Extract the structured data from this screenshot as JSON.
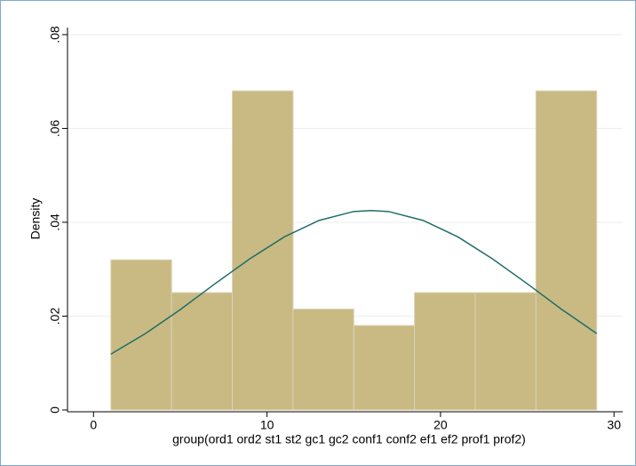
{
  "chart_data": {
    "type": "histogram",
    "xlabel": "group(ord1 ord2 st1 st2 gc1 gc2 conf1 conf2 ef1 ef2 prof1 prof2)",
    "ylabel": "Density",
    "bins": [
      1,
      4.5,
      8,
      11.5,
      15,
      18.5,
      22,
      25.5,
      29
    ],
    "values": [
      0.032,
      0.025,
      0.068,
      0.0215,
      0.018,
      0.025,
      0.025,
      0.068
    ],
    "color": "#c9ba83",
    "density_curve": {
      "x": [
        1,
        3,
        5,
        7,
        9,
        11,
        13,
        15,
        16,
        17,
        19,
        21,
        23,
        25,
        27,
        29
      ],
      "values": [
        0.0119,
        0.0163,
        0.0214,
        0.0269,
        0.0322,
        0.0369,
        0.0404,
        0.0423,
        0.0425,
        0.0423,
        0.0404,
        0.0369,
        0.0322,
        0.0269,
        0.0214,
        0.0163
      ],
      "color": "#1f6e68"
    },
    "xlim": [
      -1.5,
      30.5
    ],
    "xticks": [
      0,
      10,
      20,
      30
    ],
    "ylim": [
      0,
      0.0815
    ],
    "yticks": [
      0,
      {
        "value": 0.02,
        "label": ".02"
      },
      {
        "value": 0.04,
        "label": ".04"
      },
      {
        "value": 0.06,
        "label": ".06"
      },
      {
        "value": 0.08,
        "label": ".08"
      }
    ],
    "grid": true
  }
}
